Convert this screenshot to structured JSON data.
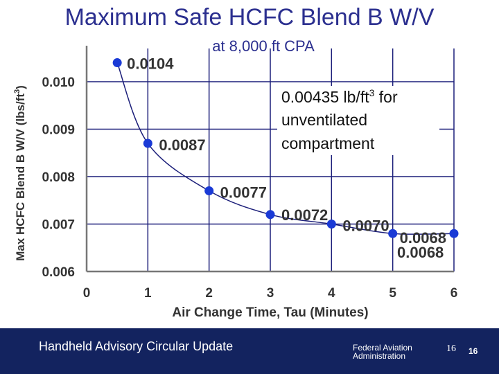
{
  "slide": {
    "title": "Maximum Safe HCFC Blend B  W/V",
    "subtitle": "at 8,000 ft CPA"
  },
  "footer": {
    "left_text": "Handheld Advisory Circular Update",
    "faa_line1": "Federal Aviation",
    "faa_line2": "Administration",
    "page_number": "16",
    "page_number_2": "16"
  },
  "chart_data": {
    "type": "line",
    "title": "",
    "xlabel": "Air Change Time, Tau  (Minutes)",
    "ylabel": "Max HCFC Blend B W/V  (lbs/ft",
    "ylabel_sup": "3",
    "ylabel_close": ")",
    "xlim": [
      0,
      6
    ],
    "ylim": [
      0.006,
      0.0107
    ],
    "x_ticks": [
      0,
      1,
      2,
      3,
      4,
      5,
      6
    ],
    "y_ticks": [
      0.006,
      0.007,
      0.008,
      0.009,
      0.01
    ],
    "y_tick_labels": [
      "0.006",
      "0.007",
      "0.008",
      "0.009",
      "0.010"
    ],
    "grid": true,
    "series": [
      {
        "x": [
          0.5,
          1,
          2,
          3,
          4,
          5,
          6
        ],
        "y": [
          0.0104,
          0.0087,
          0.0077,
          0.0072,
          0.007,
          0.0068,
          0.0068
        ],
        "labels": [
          "0.0104",
          "0.0087",
          "0.0077",
          "0.0072",
          "0.0070",
          "0.0068",
          "0.0068"
        ]
      }
    ],
    "annotation": {
      "line1_a": "0.00435 lb/ft",
      "line1_sup": "3",
      "line1_b": " for",
      "line2": "unventilated",
      "line3": "compartment"
    },
    "colors": {
      "point": "#1a3ad6",
      "grid": "#1c1f7a",
      "text": "#333333",
      "title": "#2b2f8f"
    }
  }
}
